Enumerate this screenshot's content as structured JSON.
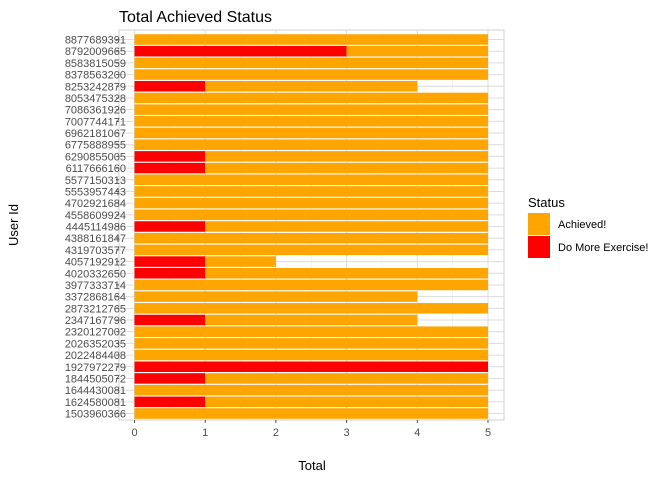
{
  "chart_data": {
    "type": "bar",
    "orientation": "horizontal",
    "stacked": true,
    "title": "Total Achieved Status",
    "xlabel": "Total",
    "ylabel": "User Id",
    "xlim": [
      0,
      5.25
    ],
    "xticks": [
      0,
      1,
      2,
      3,
      4,
      5
    ],
    "grid": true,
    "legend": {
      "title": "Status",
      "placement": "right"
    },
    "categories": [
      "1503960366",
      "1624580081",
      "1644430081",
      "1844505072",
      "1927972279",
      "2022484408",
      "2026352035",
      "2320127002",
      "2347167796",
      "2873212765",
      "3372868164",
      "3977333714",
      "4020332650",
      "4057192912",
      "4319703577",
      "4388161847",
      "4445114986",
      "4558609924",
      "4702921684",
      "5553957443",
      "5577150313",
      "6117666160",
      "6290855005",
      "6775888955",
      "6962181067",
      "7007744171",
      "7086361926",
      "8053475328",
      "8253242879",
      "8378563200",
      "8583815059",
      "8792009665",
      "8877689391"
    ],
    "series": [
      {
        "name": "Achieved!",
        "color": "#FFA500",
        "values": [
          5,
          4,
          5,
          4,
          0,
          5,
          5,
          5,
          3,
          5,
          4,
          5,
          4,
          1,
          5,
          5,
          4,
          5,
          5,
          5,
          5,
          4,
          4,
          5,
          5,
          5,
          5,
          5,
          3,
          5,
          5,
          2,
          5
        ]
      },
      {
        "name": "Do More Exercise!",
        "color": "#FF0000",
        "values": [
          0,
          1,
          0,
          1,
          5,
          0,
          0,
          0,
          1,
          0,
          0,
          0,
          1,
          1,
          0,
          0,
          1,
          0,
          0,
          0,
          0,
          1,
          1,
          0,
          0,
          0,
          0,
          0,
          1,
          0,
          0,
          3,
          0
        ]
      }
    ]
  }
}
